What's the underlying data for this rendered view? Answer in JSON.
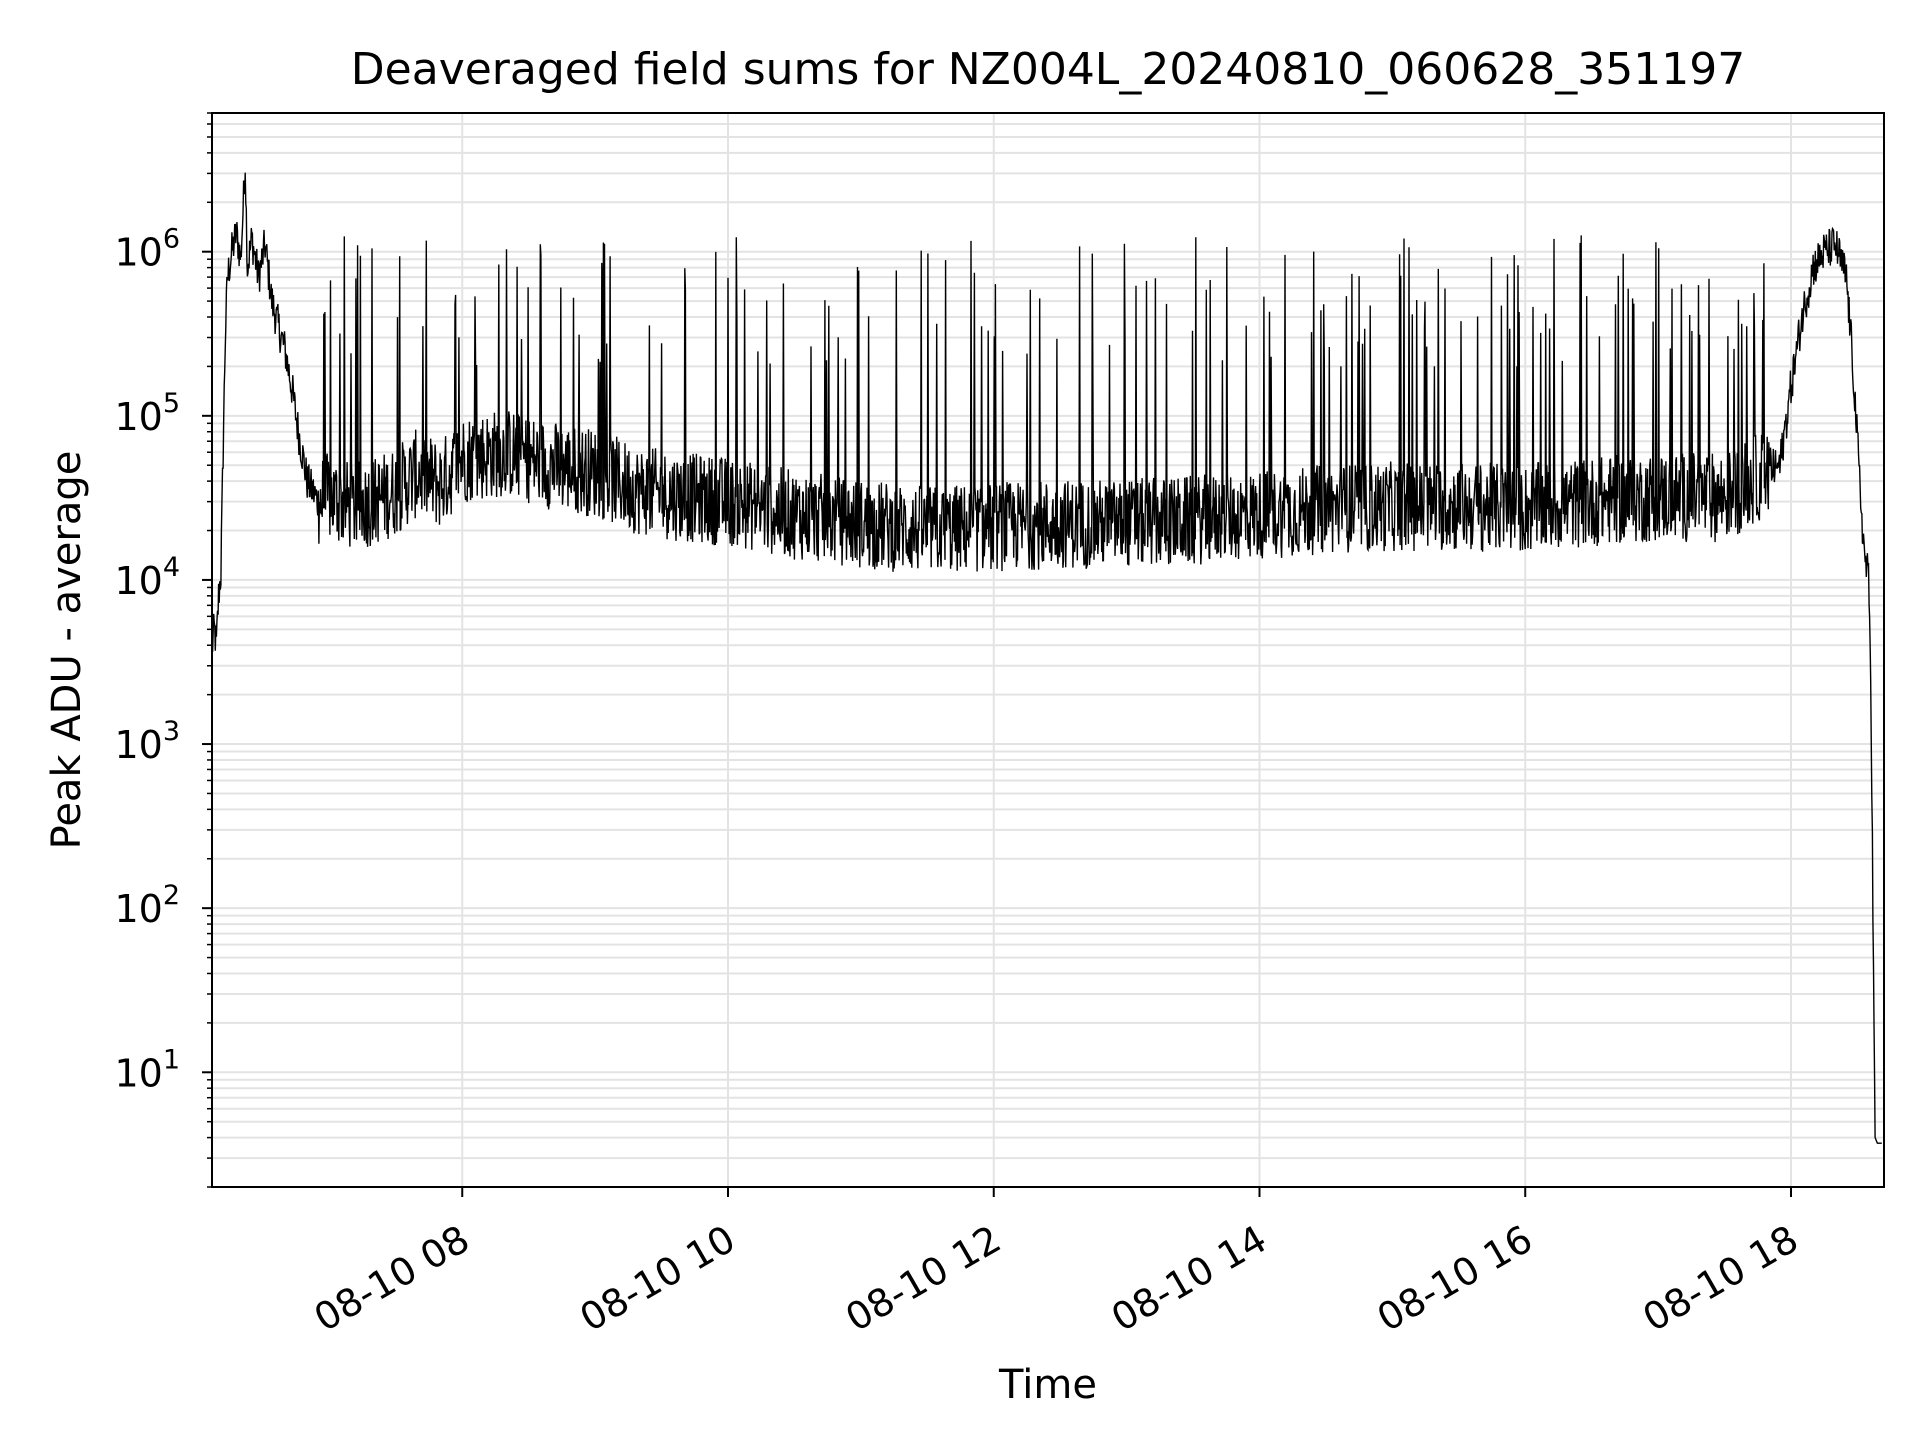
{
  "chart_data": {
    "type": "line",
    "title": "Deaveraged field sums for NZ004L_20240810_060628_351197",
    "xlabel": "Time",
    "ylabel": "Peak ADU - average",
    "yscale": "log",
    "xlim": [
      "2024-08-10 06:07",
      "2024-08-10 18:42"
    ],
    "ylim": [
      2,
      7000000
    ],
    "x_ticks": [
      "08-10 08",
      "08-10 10",
      "08-10 12",
      "08-10 14",
      "08-10 16",
      "08-10 18"
    ],
    "x_tick_times": [
      "2024-08-10 08:00",
      "2024-08-10 10:00",
      "2024-08-10 12:00",
      "2024-08-10 14:00",
      "2024-08-10 16:00",
      "2024-08-10 18:00"
    ],
    "y_ticks": [
      {
        "base": "10",
        "exp": "1",
        "value": 10
      },
      {
        "base": "10",
        "exp": "2",
        "value": 100
      },
      {
        "base": "10",
        "exp": "3",
        "value": 1000
      },
      {
        "base": "10",
        "exp": "4",
        "value": 10000
      },
      {
        "base": "10",
        "exp": "5",
        "value": 100000
      },
      {
        "base": "10",
        "exp": "6",
        "value": 1000000
      }
    ],
    "grid": true,
    "series": [
      {
        "color": "#000000",
        "points": [
          [
            "2024-08-10 06:07",
            3800
          ],
          [
            "2024-08-10 06:08",
            5000
          ],
          [
            "2024-08-10 06:09",
            4000
          ],
          [
            "2024-08-10 06:10",
            8000
          ],
          [
            "2024-08-10 06:11",
            11000
          ],
          [
            "2024-08-10 06:12",
            60000
          ],
          [
            "2024-08-10 06:13",
            300000
          ],
          [
            "2024-08-10 06:14",
            700000
          ],
          [
            "2024-08-10 06:16",
            1000000
          ],
          [
            "2024-08-10 06:18",
            1300000
          ],
          [
            "2024-08-10 06:20",
            900000
          ],
          [
            "2024-08-10 06:22",
            3500000
          ],
          [
            "2024-08-10 06:23",
            800000
          ],
          [
            "2024-08-10 06:25",
            1200000
          ],
          [
            "2024-08-10 06:28",
            700000
          ],
          [
            "2024-08-10 06:31",
            1100000
          ],
          [
            "2024-08-10 06:34",
            500000
          ],
          [
            "2024-08-10 06:37",
            350000
          ],
          [
            "2024-08-10 06:40",
            250000
          ],
          [
            "2024-08-10 06:43",
            150000
          ],
          [
            "2024-08-10 06:46",
            80000
          ],
          [
            "2024-08-10 06:50",
            40000
          ],
          [
            "2024-08-10 06:55",
            30000
          ],
          [
            "2024-08-10 07:00",
            32000
          ],
          [
            "2024-08-10 07:10",
            28000
          ],
          [
            "2024-08-10 07:20",
            30000
          ],
          [
            "2024-08-10 07:30",
            35000
          ],
          [
            "2024-08-10 07:40",
            45000
          ],
          [
            "2024-08-10 07:50",
            38000
          ],
          [
            "2024-08-10 08:00",
            55000
          ],
          [
            "2024-08-10 08:20",
            60000
          ],
          [
            "2024-08-10 08:40",
            50000
          ],
          [
            "2024-08-10 09:00",
            45000
          ],
          [
            "2024-08-10 09:20",
            35000
          ],
          [
            "2024-08-10 09:40",
            32000
          ],
          [
            "2024-08-10 10:00",
            30000
          ],
          [
            "2024-08-10 10:30",
            25000
          ],
          [
            "2024-08-10 11:00",
            22000
          ],
          [
            "2024-08-10 11:30",
            20000
          ],
          [
            "2024-08-10 12:00",
            21000
          ],
          [
            "2024-08-10 12:30",
            22000
          ],
          [
            "2024-08-10 13:00",
            22000
          ],
          [
            "2024-08-10 13:30",
            23000
          ],
          [
            "2024-08-10 14:00",
            25000
          ],
          [
            "2024-08-10 14:30",
            27000
          ],
          [
            "2024-08-10 15:00",
            28000
          ],
          [
            "2024-08-10 15:30",
            28000
          ],
          [
            "2024-08-10 16:00",
            27000
          ],
          [
            "2024-08-10 16:30",
            30000
          ],
          [
            "2024-08-10 17:00",
            32000
          ],
          [
            "2024-08-10 17:30",
            32000
          ],
          [
            "2024-08-10 17:55",
            50000
          ],
          [
            "2024-08-10 18:00",
            150000
          ],
          [
            "2024-08-10 18:05",
            400000
          ],
          [
            "2024-08-10 18:10",
            800000
          ],
          [
            "2024-08-10 18:15",
            1000000
          ],
          [
            "2024-08-10 18:20",
            1100000
          ],
          [
            "2024-08-10 18:25",
            700000
          ],
          [
            "2024-08-10 18:28",
            200000
          ],
          [
            "2024-08-10 18:31",
            40000
          ],
          [
            "2024-08-10 18:33",
            15000
          ],
          [
            "2024-08-10 18:35",
            10000
          ],
          [
            "2024-08-10 18:36",
            3000
          ],
          [
            "2024-08-10 18:37",
            100
          ],
          [
            "2024-08-10 18:38",
            4
          ],
          [
            "2024-08-10 18:39",
            3.7
          ],
          [
            "2024-08-10 18:41",
            3.7
          ]
        ]
      }
    ]
  }
}
